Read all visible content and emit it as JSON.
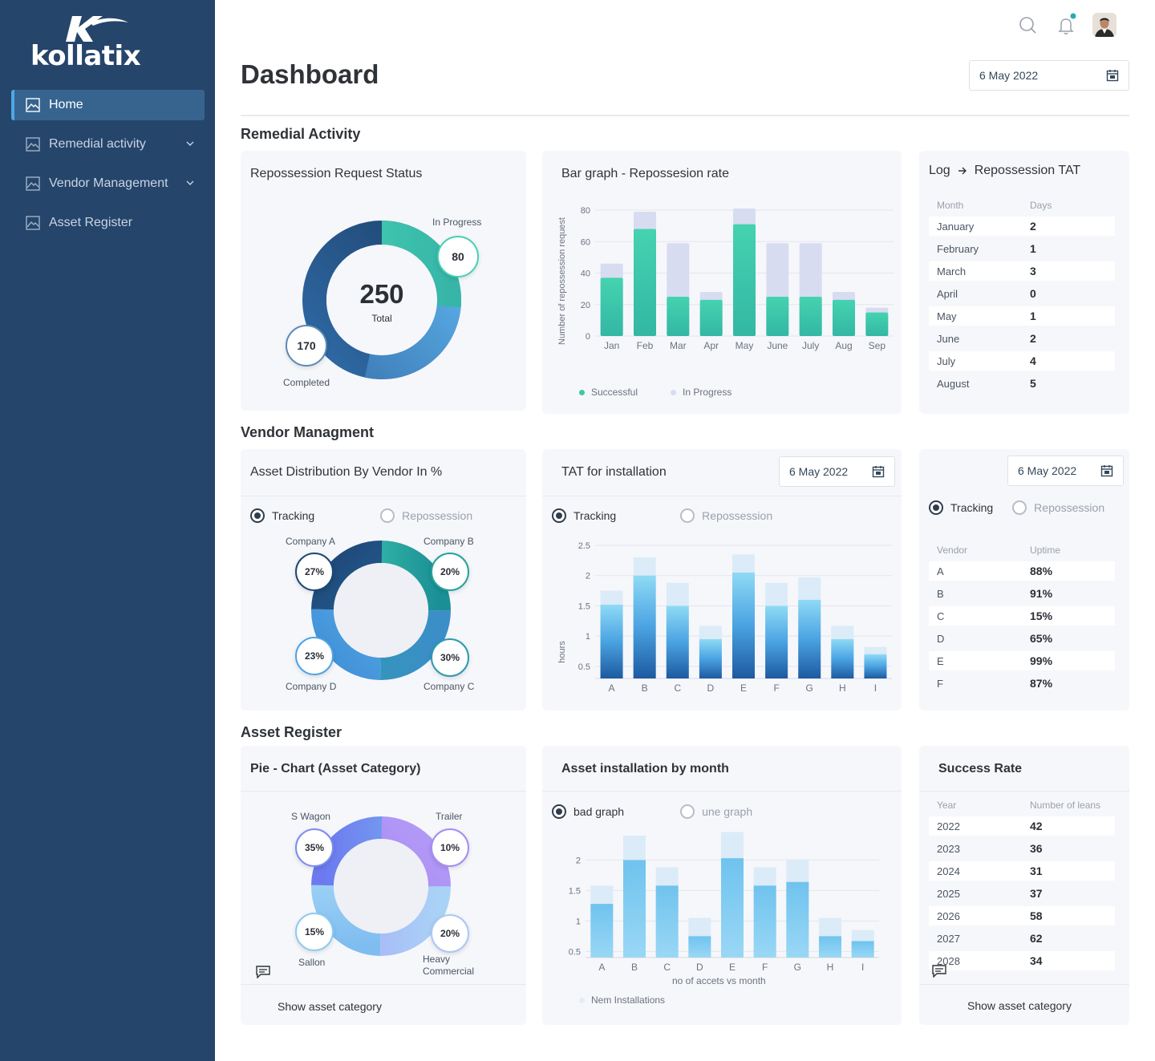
{
  "brand": {
    "name": "kollatix"
  },
  "sidebar": {
    "items": [
      {
        "label": "Home",
        "active": true,
        "has_children": false
      },
      {
        "label": "Remedial activity",
        "active": false,
        "has_children": true
      },
      {
        "label": "Vendor Management",
        "active": false,
        "has_children": true
      },
      {
        "label": "Asset Register",
        "active": false,
        "has_children": false
      }
    ]
  },
  "header": {
    "title": "Dashboard",
    "date": "6 May 2022",
    "icons": [
      "search-icon",
      "bell-icon",
      "avatar"
    ],
    "notification_dot_color": "#2aa9b8"
  },
  "sections": {
    "remedial": "Remedial Activity",
    "vendor": "Vendor Managment",
    "asset": "Asset Register"
  },
  "repossession_status": {
    "title": "Repossession Request Status",
    "total": "250",
    "total_label": "Total",
    "in_progress_label": "In Progress",
    "in_progress_value": "80",
    "completed_label": "Completed",
    "completed_value": "170"
  },
  "bar_repo": {
    "title": "Bar graph - Repossesion rate",
    "ylabel": "Number of repossession request",
    "legend_successful": "Successful",
    "legend_in_progress": "In Progress"
  },
  "log_tat": {
    "title_part1": "Log",
    "title_part2": "Repossession TAT",
    "col_month": "Month",
    "col_days": "Days",
    "rows": [
      {
        "month": "January",
        "days": "2"
      },
      {
        "month": "February",
        "days": "1"
      },
      {
        "month": "March",
        "days": "3"
      },
      {
        "month": "April",
        "days": "0"
      },
      {
        "month": "May",
        "days": "1"
      },
      {
        "month": "June",
        "days": "2"
      },
      {
        "month": "July",
        "days": "4"
      },
      {
        "month": "August",
        "days": "5"
      }
    ]
  },
  "asset_distribution": {
    "title": "Asset Distribution By Vendor In %",
    "radio_tracking": "Tracking",
    "radio_repossession": "Repossession",
    "company_a": "Company A",
    "company_b": "Company B",
    "company_c": "Company C",
    "company_d": "Company D",
    "pct_a": "27%",
    "pct_b": "20%",
    "pct_c": "30%",
    "pct_d": "23%"
  },
  "tat_installation": {
    "title": "TAT for installation",
    "date": "6 May 2022",
    "radio_tracking": "Tracking",
    "radio_repossession": "Repossession",
    "ylabel": "hours"
  },
  "vendor_uptime": {
    "date": "6 May 2022",
    "radio_tracking": "Tracking",
    "radio_repossession": "Repossession",
    "col_vendor": "Vendor",
    "col_uptime": "Uptime",
    "rows": [
      {
        "vendor": "A",
        "uptime": "88%"
      },
      {
        "vendor": "B",
        "uptime": "91%"
      },
      {
        "vendor": "C",
        "uptime": "15%"
      },
      {
        "vendor": "D",
        "uptime": "65%"
      },
      {
        "vendor": "E",
        "uptime": "99%"
      },
      {
        "vendor": "F",
        "uptime": "87%"
      }
    ]
  },
  "asset_category": {
    "title": "Pie - Chart (Asset Category)",
    "s_wagon": "S Wagon",
    "trailer": "Trailer",
    "sallon": "Sallon",
    "heavy_1": "Heavy",
    "heavy_2": "Commercial",
    "pct_s_wagon": "35%",
    "pct_trailer": "10%",
    "pct_sallon": "15%",
    "pct_heavy": "20%",
    "footer": "Show asset category"
  },
  "asset_install_month": {
    "title": "Asset installation by month",
    "radio_bad": "bad graph",
    "radio_une": "une graph",
    "xlabel": "no of accets vs month",
    "legend": "Nem Installations"
  },
  "success_rate": {
    "title": "Success Rate",
    "col_year": "Year",
    "col_loans": "Number of leans",
    "rows": [
      {
        "year": "2022",
        "value": "42"
      },
      {
        "year": "2023",
        "value": "36"
      },
      {
        "year": "2024",
        "value": "31"
      },
      {
        "year": "2025",
        "value": "37"
      },
      {
        "year": "2026",
        "value": "58"
      },
      {
        "year": "2027",
        "value": "62"
      },
      {
        "year": "2028",
        "value": "34"
      }
    ],
    "footer": "Show asset category"
  },
  "chart_data": [
    {
      "type": "bar",
      "id": "repo",
      "categories": [
        "Jan",
        "Feb",
        "Mar",
        "Apr",
        "May",
        "June",
        "July",
        "Aug",
        "Sep"
      ],
      "yticks": [
        "0",
        "20",
        "40",
        "60",
        "80"
      ],
      "ylim": [
        0,
        80
      ],
      "ylabel": "Number of repossession request",
      "series": [
        {
          "name": "Successful",
          "values": [
            37,
            68,
            25,
            23,
            71,
            25,
            25,
            23,
            15
          ],
          "color": "#3ec9a4"
        },
        {
          "name": "In Progress",
          "values": [
            46,
            79,
            59,
            28,
            81,
            59,
            59,
            28,
            18
          ],
          "color": "#d8dcf1"
        }
      ],
      "legend_position": "bottom-left"
    },
    {
      "type": "bar",
      "id": "tat",
      "categories": [
        "A",
        "B",
        "C",
        "D",
        "E",
        "F",
        "G",
        "H",
        "I"
      ],
      "yticks": [
        "0.5",
        "1",
        "1.5",
        "2",
        "2.5"
      ],
      "ylim": [
        0.3,
        2.5
      ],
      "ylabel": "hours",
      "series": [
        {
          "name": "value",
          "values": [
            1.52,
            2.0,
            1.5,
            0.95,
            2.05,
            1.5,
            1.6,
            0.95,
            0.7
          ]
        },
        {
          "name": "cap",
          "values": [
            1.75,
            2.3,
            1.88,
            1.17,
            2.35,
            1.88,
            1.97,
            1.17,
            0.82
          ]
        }
      ]
    },
    {
      "type": "bar",
      "id": "install",
      "categories": [
        "A",
        "B",
        "C",
        "D",
        "E",
        "F",
        "G",
        "H",
        "I"
      ],
      "yticks": [
        "0.5",
        "1",
        "1.5",
        "2"
      ],
      "ylim": [
        0.4,
        2.4
      ],
      "xlabel": "no of accets vs month",
      "series": [
        {
          "name": "Nem Installations",
          "values": [
            1.28,
            2.0,
            1.58,
            0.75,
            2.03,
            1.58,
            1.64,
            0.75,
            0.67
          ]
        },
        {
          "name": "cap",
          "values": [
            1.58,
            2.4,
            1.88,
            1.05,
            2.46,
            1.88,
            2.01,
            1.05,
            0.85
          ]
        }
      ]
    },
    {
      "type": "pie",
      "id": "vendor_dist",
      "categories": [
        "Company A",
        "Company B",
        "Company C",
        "Company D"
      ],
      "values": [
        27,
        20,
        30,
        23
      ]
    },
    {
      "type": "pie",
      "id": "asset_cat",
      "categories": [
        "S Wagon",
        "Trailer",
        "Heavy Commercial",
        "Sallon"
      ],
      "values": [
        35,
        10,
        20,
        15
      ]
    }
  ]
}
